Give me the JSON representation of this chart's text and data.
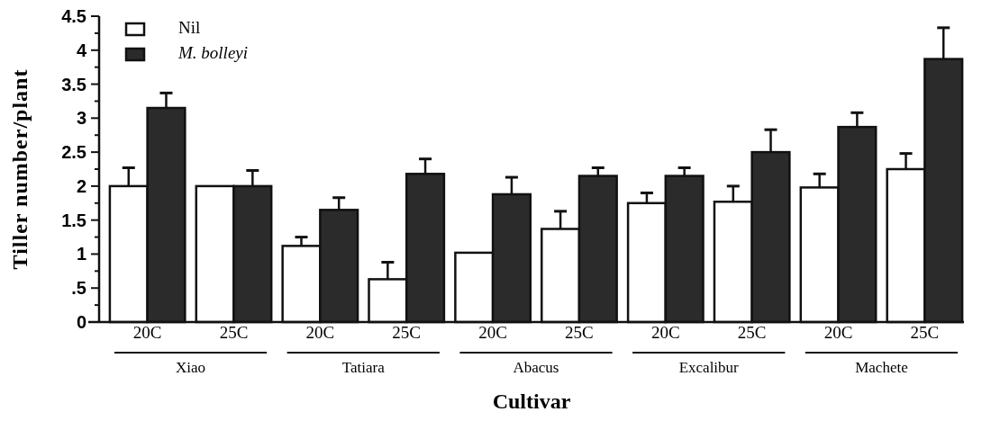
{
  "chart_data": {
    "type": "bar",
    "xlabel": "Cultivar",
    "ylabel": "Tiller number/plant",
    "categories": [
      "20C",
      "25C",
      "20C",
      "25C",
      "20C",
      "25C",
      "20C",
      "25C",
      "20C",
      "25C"
    ],
    "series": [
      {
        "name": "Nil",
        "color": "#ffffff",
        "values": [
          2.0,
          2.0,
          1.12,
          0.63,
          1.02,
          1.37,
          1.75,
          1.77,
          1.98,
          2.25
        ],
        "errors": [
          0.27,
          null,
          0.13,
          0.25,
          null,
          0.26,
          0.15,
          0.23,
          0.2,
          0.23
        ]
      },
      {
        "name": "M. bolleyi",
        "color": "#2b2b2b",
        "values": [
          3.15,
          2.0,
          1.65,
          2.18,
          1.88,
          2.15,
          2.15,
          2.5,
          2.87,
          3.87
        ],
        "errors": [
          0.22,
          0.23,
          0.18,
          0.22,
          0.25,
          0.12,
          0.12,
          0.33,
          0.21,
          0.46
        ]
      }
    ],
    "annotations": [
      "Xiao",
      "Tatiara",
      "Abacus",
      "Excalibur",
      "Machete"
    ],
    "ylim": [
      0,
      4.5
    ],
    "yticks": [
      0,
      {
        "value": 0.25,
        "label": null
      },
      {
        "value": 0.5,
        "label": ".5"
      },
      {
        "value": 0.75,
        "label": null
      },
      1,
      {
        "value": 1.25,
        "label": null
      },
      1.5,
      {
        "value": 1.75,
        "label": null
      },
      2,
      {
        "value": 2.25,
        "label": null
      },
      2.5,
      {
        "value": 2.75,
        "label": null
      },
      3,
      {
        "value": 3.25,
        "label": null
      },
      3.5,
      {
        "value": 3.75,
        "label": null
      },
      4,
      {
        "value": 4.25,
        "label": null
      },
      4.5
    ],
    "legend": "top left",
    "grid": false
  }
}
